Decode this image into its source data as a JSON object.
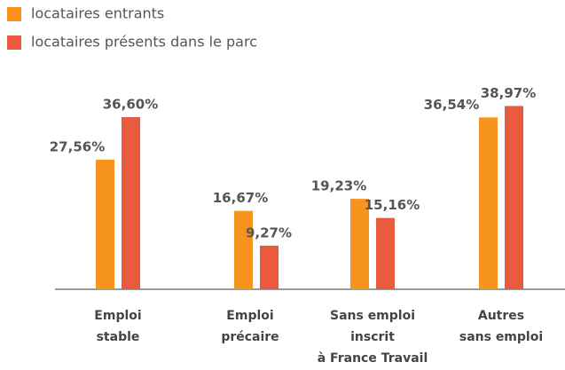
{
  "chart_data": {
    "type": "bar",
    "categories": [
      [
        "Emploi",
        "stable"
      ],
      [
        "Emploi",
        "précaire"
      ],
      [
        "Sans emploi",
        "inscrit",
        "à France Travail"
      ],
      [
        "Autres",
        "sans emploi"
      ]
    ],
    "series": [
      {
        "name": "locataires entrants",
        "color": "#f7941d",
        "values": [
          27.56,
          16.67,
          19.23,
          36.54
        ],
        "value_labels": [
          "27,56%",
          "16,67%",
          "19,23%",
          "36,54%"
        ]
      },
      {
        "name": "locataires présents dans le parc",
        "color": "#e95a3f",
        "values": [
          36.6,
          9.27,
          15.16,
          38.97
        ],
        "value_labels": [
          "36,60%",
          "9,27%",
          "15,16%",
          "38,97%"
        ]
      }
    ],
    "ylim": [
      0,
      40
    ]
  }
}
